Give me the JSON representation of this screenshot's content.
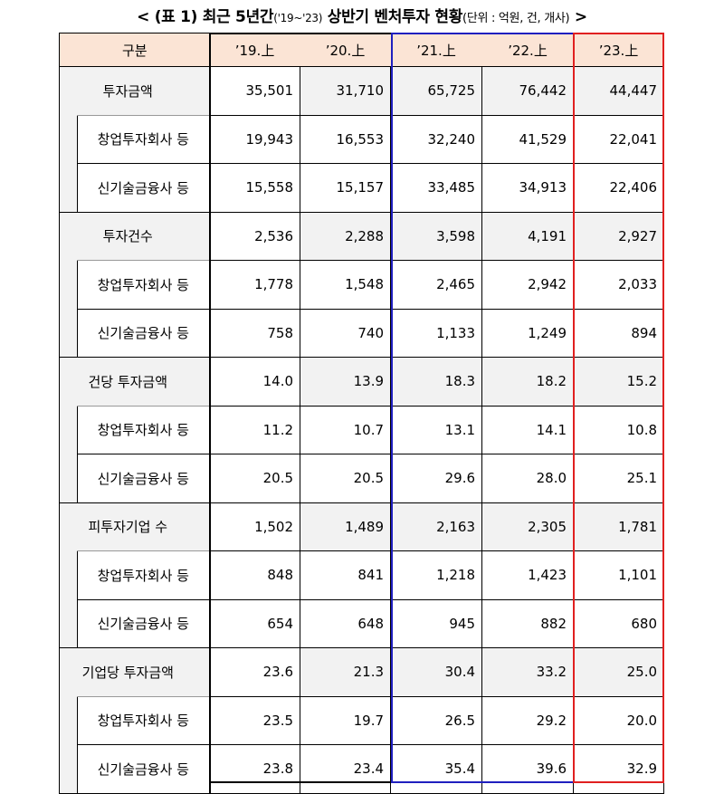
{
  "title": {
    "open": "< ",
    "main": "(표 1) 최근 5년간",
    "range": "('19~'23)",
    "main2": " 상반기 벤처투자 현황",
    "unit": "(단위 : 억원, 건, 개사)",
    "close": " >"
  },
  "header": {
    "label": "구분",
    "cols": [
      "’19.上",
      "’20.上",
      "’21.上",
      "’22.上",
      "’23.上"
    ]
  },
  "groups": [
    {
      "label": "투자금액",
      "values": [
        "35,501",
        "31,710",
        "65,725",
        "76,442",
        "44,447"
      ],
      "subs": [
        {
          "label": "창업투자회사 등",
          "values": [
            "19,943",
            "16,553",
            "32,240",
            "41,529",
            "22,041"
          ]
        },
        {
          "label": "신기술금융사 등",
          "values": [
            "15,558",
            "15,157",
            "33,485",
            "34,913",
            "22,406"
          ]
        }
      ]
    },
    {
      "label": "투자건수",
      "values": [
        "2,536",
        "2,288",
        "3,598",
        "4,191",
        "2,927"
      ],
      "subs": [
        {
          "label": "창업투자회사 등",
          "values": [
            "1,778",
            "1,548",
            "2,465",
            "2,942",
            "2,033"
          ]
        },
        {
          "label": "신기술금융사 등",
          "values": [
            "758",
            "740",
            "1,133",
            "1,249",
            "894"
          ]
        }
      ]
    },
    {
      "label": "건당 투자금액",
      "values": [
        "14.0",
        "13.9",
        "18.3",
        "18.2",
        "15.2"
      ],
      "subs": [
        {
          "label": "창업투자회사 등",
          "values": [
            "11.2",
            "10.7",
            "13.1",
            "14.1",
            "10.8"
          ]
        },
        {
          "label": "신기술금융사 등",
          "values": [
            "20.5",
            "20.5",
            "29.6",
            "28.0",
            "25.1"
          ]
        }
      ]
    },
    {
      "label": "피투자기업 수",
      "values": [
        "1,502",
        "1,489",
        "2,163",
        "2,305",
        "1,781"
      ],
      "subs": [
        {
          "label": "창업투자회사 등",
          "values": [
            "848",
            "841",
            "1,218",
            "1,423",
            "1,101"
          ]
        },
        {
          "label": "신기술금융사 등",
          "values": [
            "654",
            "648",
            "945",
            "882",
            "680"
          ]
        }
      ]
    },
    {
      "label": "기업당 투자금액",
      "values": [
        "23.6",
        "21.3",
        "30.4",
        "33.2",
        "25.0"
      ],
      "subs": [
        {
          "label": "창업투자회사 등",
          "values": [
            "23.5",
            "19.7",
            "26.5",
            "29.2",
            "20.0"
          ]
        },
        {
          "label": "신기술금융사 등",
          "values": [
            "23.8",
            "23.4",
            "35.4",
            "39.6",
            "32.9"
          ]
        }
      ]
    }
  ],
  "colors": {
    "header_bg": "#fbe4d5",
    "main_row_bg": "#f2f2f2",
    "box_19_20": "#000000",
    "box_21_22": "#1f1fbf",
    "box_23": "#e02020"
  }
}
